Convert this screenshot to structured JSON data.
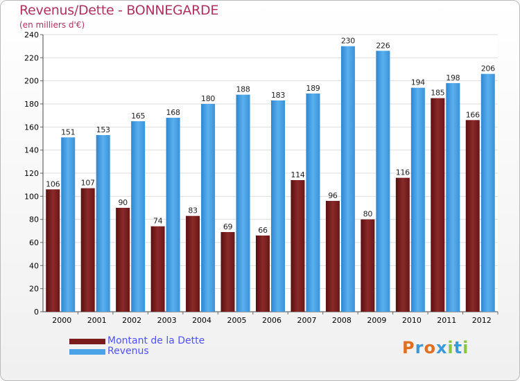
{
  "title": "Revenus/Dette - BONNEGARDE",
  "subtitle": "(en milliers d'€)",
  "colors": {
    "dette": "#7a1c1c",
    "revenus": "#4aa3e6",
    "title": "#b03060"
  },
  "logo": {
    "letters": [
      "P",
      "r",
      "o",
      "x",
      "i",
      "t",
      "i"
    ],
    "colors": [
      "#e07020",
      "#3a9ad9",
      "#e07020",
      "#3a9ad9",
      "#8ac640",
      "#3a9ad9",
      "#8ac640"
    ]
  },
  "chart_data": {
    "type": "bar",
    "categories": [
      "2000",
      "2001",
      "2002",
      "2003",
      "2004",
      "2005",
      "2006",
      "2007",
      "2008",
      "2009",
      "2010",
      "2011",
      "2012"
    ],
    "series": [
      {
        "name": "Montant de la Dette",
        "values": [
          106,
          107,
          90,
          74,
          83,
          69,
          66,
          114,
          96,
          80,
          116,
          185,
          166
        ]
      },
      {
        "name": "Revenus",
        "values": [
          151,
          153,
          165,
          168,
          180,
          188,
          183,
          189,
          230,
          226,
          194,
          198,
          206
        ]
      }
    ],
    "title": "Revenus/Dette - BONNEGARDE",
    "ylabel": "(en milliers d'€)",
    "ylim": [
      0,
      240
    ],
    "yticks": [
      0,
      20,
      40,
      60,
      80,
      100,
      120,
      140,
      160,
      180,
      200,
      220,
      240
    ],
    "grid": true,
    "legend": "bottom-left"
  }
}
